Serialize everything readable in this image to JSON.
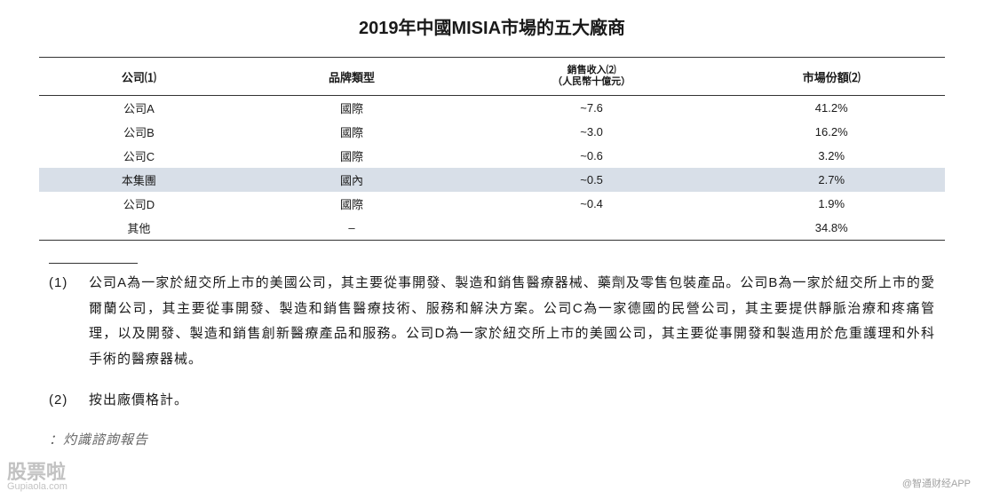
{
  "title": "2019年中國MISIA市場的五大廠商",
  "table": {
    "headers": {
      "col1": "公司⑴",
      "col2": "品牌類型",
      "col3_line1": "銷售收入⑵",
      "col3_line2": "（人民幣十億元）",
      "col4": "市場份額⑵"
    },
    "rows": [
      {
        "company": "公司A",
        "type": "國際",
        "revenue": "~7.6",
        "share": "41.2%",
        "highlight": false
      },
      {
        "company": "公司B",
        "type": "國際",
        "revenue": "~3.0",
        "share": "16.2%",
        "highlight": false
      },
      {
        "company": "公司C",
        "type": "國際",
        "revenue": "~0.6",
        "share": "3.2%",
        "highlight": false
      },
      {
        "company": "本集團",
        "type": "國內",
        "revenue": "~0.5",
        "share": "2.7%",
        "highlight": true
      },
      {
        "company": "公司D",
        "type": "國際",
        "revenue": "~0.4",
        "share": "1.9%",
        "highlight": false
      },
      {
        "company": "其他",
        "type": "–",
        "revenue": "",
        "share": "34.8%",
        "highlight": false
      }
    ]
  },
  "footnotes": [
    {
      "num": "(1)",
      "text": "公司A為一家於紐交所上市的美國公司，其主要從事開發、製造和銷售醫療器械、藥劑及零售包裝產品。公司B為一家於紐交所上市的愛爾蘭公司，其主要從事開發、製造和銷售醫療技術、服務和解決方案。公司C為一家德國的民營公司，其主要提供靜脈治療和疼痛管理，以及開發、製造和銷售創新醫療產品和服務。公司D為一家於紐交所上市的美國公司，其主要從事開發和製造用於危重護理和外科手術的醫療器械。"
    },
    {
      "num": "(2)",
      "text": "按出廠價格計。"
    }
  ],
  "source": "：灼識諮詢報告",
  "watermarks": {
    "left_main": "股票啦",
    "left_sub": "Gupiaola.com",
    "right": "@智通财经APP"
  },
  "colors": {
    "background": "#ffffff",
    "text": "#1a1a1a",
    "highlight_row": "#d8dfe8",
    "border": "#333333",
    "watermark": "rgba(80,80,80,0.35)"
  }
}
